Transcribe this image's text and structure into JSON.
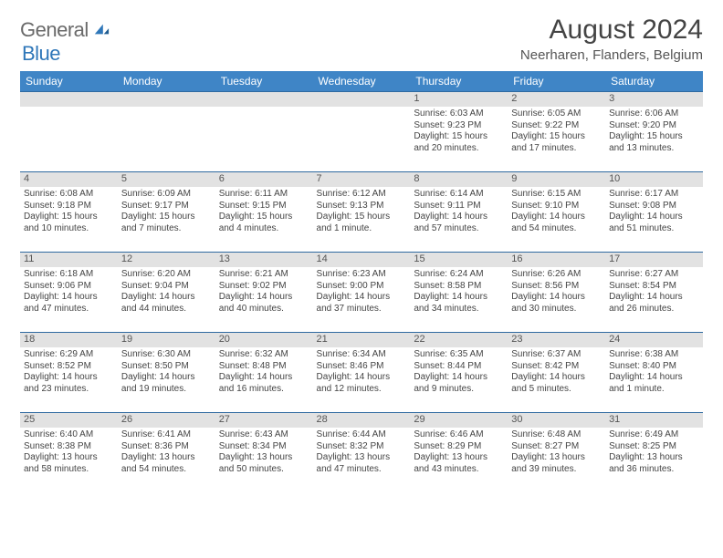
{
  "logo": {
    "text_general": "General",
    "text_blue": "Blue",
    "accent_color": "#2f77b9"
  },
  "header": {
    "month_title": "August 2024",
    "location": "Neerharen, Flanders, Belgium"
  },
  "colors": {
    "header_bg": "#3f85c6",
    "row_divider": "#2f6aa0",
    "daynum_bg": "#e2e2e2",
    "text": "#444444"
  },
  "day_names": [
    "Sunday",
    "Monday",
    "Tuesday",
    "Wednesday",
    "Thursday",
    "Friday",
    "Saturday"
  ],
  "weeks": [
    [
      {
        "n": "",
        "sr": "",
        "ss": "",
        "dl": ""
      },
      {
        "n": "",
        "sr": "",
        "ss": "",
        "dl": ""
      },
      {
        "n": "",
        "sr": "",
        "ss": "",
        "dl": ""
      },
      {
        "n": "",
        "sr": "",
        "ss": "",
        "dl": ""
      },
      {
        "n": "1",
        "sr": "Sunrise: 6:03 AM",
        "ss": "Sunset: 9:23 PM",
        "dl": "Daylight: 15 hours and 20 minutes."
      },
      {
        "n": "2",
        "sr": "Sunrise: 6:05 AM",
        "ss": "Sunset: 9:22 PM",
        "dl": "Daylight: 15 hours and 17 minutes."
      },
      {
        "n": "3",
        "sr": "Sunrise: 6:06 AM",
        "ss": "Sunset: 9:20 PM",
        "dl": "Daylight: 15 hours and 13 minutes."
      }
    ],
    [
      {
        "n": "4",
        "sr": "Sunrise: 6:08 AM",
        "ss": "Sunset: 9:18 PM",
        "dl": "Daylight: 15 hours and 10 minutes."
      },
      {
        "n": "5",
        "sr": "Sunrise: 6:09 AM",
        "ss": "Sunset: 9:17 PM",
        "dl": "Daylight: 15 hours and 7 minutes."
      },
      {
        "n": "6",
        "sr": "Sunrise: 6:11 AM",
        "ss": "Sunset: 9:15 PM",
        "dl": "Daylight: 15 hours and 4 minutes."
      },
      {
        "n": "7",
        "sr": "Sunrise: 6:12 AM",
        "ss": "Sunset: 9:13 PM",
        "dl": "Daylight: 15 hours and 1 minute."
      },
      {
        "n": "8",
        "sr": "Sunrise: 6:14 AM",
        "ss": "Sunset: 9:11 PM",
        "dl": "Daylight: 14 hours and 57 minutes."
      },
      {
        "n": "9",
        "sr": "Sunrise: 6:15 AM",
        "ss": "Sunset: 9:10 PM",
        "dl": "Daylight: 14 hours and 54 minutes."
      },
      {
        "n": "10",
        "sr": "Sunrise: 6:17 AM",
        "ss": "Sunset: 9:08 PM",
        "dl": "Daylight: 14 hours and 51 minutes."
      }
    ],
    [
      {
        "n": "11",
        "sr": "Sunrise: 6:18 AM",
        "ss": "Sunset: 9:06 PM",
        "dl": "Daylight: 14 hours and 47 minutes."
      },
      {
        "n": "12",
        "sr": "Sunrise: 6:20 AM",
        "ss": "Sunset: 9:04 PM",
        "dl": "Daylight: 14 hours and 44 minutes."
      },
      {
        "n": "13",
        "sr": "Sunrise: 6:21 AM",
        "ss": "Sunset: 9:02 PM",
        "dl": "Daylight: 14 hours and 40 minutes."
      },
      {
        "n": "14",
        "sr": "Sunrise: 6:23 AM",
        "ss": "Sunset: 9:00 PM",
        "dl": "Daylight: 14 hours and 37 minutes."
      },
      {
        "n": "15",
        "sr": "Sunrise: 6:24 AM",
        "ss": "Sunset: 8:58 PM",
        "dl": "Daylight: 14 hours and 34 minutes."
      },
      {
        "n": "16",
        "sr": "Sunrise: 6:26 AM",
        "ss": "Sunset: 8:56 PM",
        "dl": "Daylight: 14 hours and 30 minutes."
      },
      {
        "n": "17",
        "sr": "Sunrise: 6:27 AM",
        "ss": "Sunset: 8:54 PM",
        "dl": "Daylight: 14 hours and 26 minutes."
      }
    ],
    [
      {
        "n": "18",
        "sr": "Sunrise: 6:29 AM",
        "ss": "Sunset: 8:52 PM",
        "dl": "Daylight: 14 hours and 23 minutes."
      },
      {
        "n": "19",
        "sr": "Sunrise: 6:30 AM",
        "ss": "Sunset: 8:50 PM",
        "dl": "Daylight: 14 hours and 19 minutes."
      },
      {
        "n": "20",
        "sr": "Sunrise: 6:32 AM",
        "ss": "Sunset: 8:48 PM",
        "dl": "Daylight: 14 hours and 16 minutes."
      },
      {
        "n": "21",
        "sr": "Sunrise: 6:34 AM",
        "ss": "Sunset: 8:46 PM",
        "dl": "Daylight: 14 hours and 12 minutes."
      },
      {
        "n": "22",
        "sr": "Sunrise: 6:35 AM",
        "ss": "Sunset: 8:44 PM",
        "dl": "Daylight: 14 hours and 9 minutes."
      },
      {
        "n": "23",
        "sr": "Sunrise: 6:37 AM",
        "ss": "Sunset: 8:42 PM",
        "dl": "Daylight: 14 hours and 5 minutes."
      },
      {
        "n": "24",
        "sr": "Sunrise: 6:38 AM",
        "ss": "Sunset: 8:40 PM",
        "dl": "Daylight: 14 hours and 1 minute."
      }
    ],
    [
      {
        "n": "25",
        "sr": "Sunrise: 6:40 AM",
        "ss": "Sunset: 8:38 PM",
        "dl": "Daylight: 13 hours and 58 minutes."
      },
      {
        "n": "26",
        "sr": "Sunrise: 6:41 AM",
        "ss": "Sunset: 8:36 PM",
        "dl": "Daylight: 13 hours and 54 minutes."
      },
      {
        "n": "27",
        "sr": "Sunrise: 6:43 AM",
        "ss": "Sunset: 8:34 PM",
        "dl": "Daylight: 13 hours and 50 minutes."
      },
      {
        "n": "28",
        "sr": "Sunrise: 6:44 AM",
        "ss": "Sunset: 8:32 PM",
        "dl": "Daylight: 13 hours and 47 minutes."
      },
      {
        "n": "29",
        "sr": "Sunrise: 6:46 AM",
        "ss": "Sunset: 8:29 PM",
        "dl": "Daylight: 13 hours and 43 minutes."
      },
      {
        "n": "30",
        "sr": "Sunrise: 6:48 AM",
        "ss": "Sunset: 8:27 PM",
        "dl": "Daylight: 13 hours and 39 minutes."
      },
      {
        "n": "31",
        "sr": "Sunrise: 6:49 AM",
        "ss": "Sunset: 8:25 PM",
        "dl": "Daylight: 13 hours and 36 minutes."
      }
    ]
  ]
}
